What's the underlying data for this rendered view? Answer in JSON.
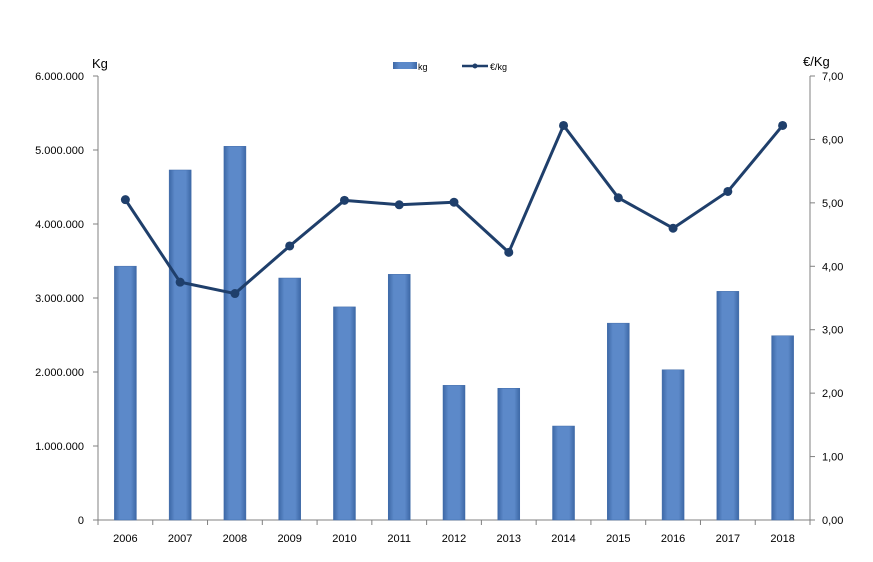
{
  "chart_data": {
    "type": "bar",
    "categories": [
      "2006",
      "2007",
      "2008",
      "2009",
      "2010",
      "2011",
      "2012",
      "2013",
      "2014",
      "2015",
      "2016",
      "2017",
      "2018"
    ],
    "series": [
      {
        "name": "kg",
        "type": "bar",
        "axis": "left",
        "values": [
          3430000,
          4730000,
          5050000,
          3270000,
          2880000,
          3320000,
          1820000,
          1780000,
          1270000,
          2660000,
          2030000,
          3090000,
          2490000
        ]
      },
      {
        "name": "€/kg",
        "type": "line",
        "axis": "right",
        "values": [
          5.05,
          3.75,
          3.57,
          4.32,
          5.04,
          4.97,
          5.01,
          4.22,
          6.22,
          5.08,
          4.6,
          5.18,
          6.22
        ]
      }
    ],
    "ylabel_left": "Kg",
    "ylabel_right": "€/Kg",
    "ylim_left": [
      0,
      6000000
    ],
    "ylim_right": [
      0,
      7
    ],
    "yticks_left": [
      "0",
      "1.000.000",
      "2.000.000",
      "3.000.000",
      "4.000.000",
      "5.000.000",
      "6.000.000"
    ],
    "yticks_right": [
      "0,00",
      "1,00",
      "2,00",
      "3,00",
      "4,00",
      "5,00",
      "6,00",
      "7,00"
    ],
    "grid": false,
    "legend_position": "top-center",
    "colors": {
      "bar": "#5b87c7",
      "bar_dark": "#3f6aa8",
      "line": "#1f3f6b",
      "axis": "#808080"
    }
  }
}
